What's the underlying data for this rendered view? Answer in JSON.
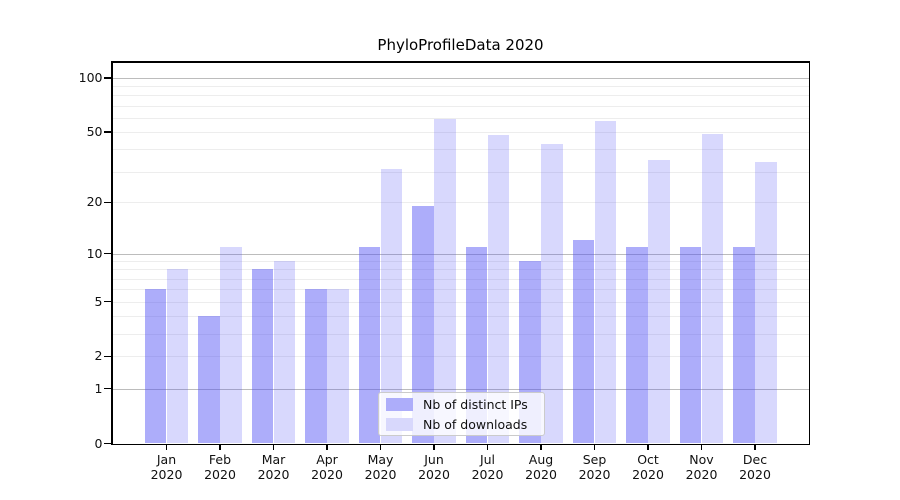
{
  "figure": {
    "title": "PhyloProfileData 2020"
  },
  "legend": {
    "items": [
      {
        "label": "Nb of distinct IPs",
        "color": "#adadfa"
      },
      {
        "label": "Nb of downloads",
        "color": "#d8d8fc"
      }
    ]
  },
  "chart_data": {
    "type": "bar",
    "title": "PhyloProfileData 2020",
    "yscale": "log1p",
    "grid": true,
    "legend_position": "lower center, inside plot",
    "categories": [
      "Jan 2020",
      "Feb 2020",
      "Mar 2020",
      "Apr 2020",
      "May 2020",
      "Jun 2020",
      "Jul 2020",
      "Aug 2020",
      "Sep 2020",
      "Oct 2020",
      "Nov 2020",
      "Dec 2020"
    ],
    "x_tick_month": [
      "Jan",
      "Feb",
      "Mar",
      "Apr",
      "May",
      "Jun",
      "Jul",
      "Aug",
      "Sep",
      "Oct",
      "Nov",
      "Dec"
    ],
    "x_tick_year": "2020",
    "series": [
      {
        "name": "Nb of distinct IPs",
        "color": "rgba(77,77,244,0.46)",
        "values": [
          6,
          4,
          8,
          6,
          11,
          19,
          11,
          9,
          12,
          11,
          11,
          11
        ]
      },
      {
        "name": "Nb of downloads",
        "color": "rgba(77,77,244,0.22)",
        "values": [
          8,
          11,
          9,
          6,
          31,
          59,
          48,
          43,
          58,
          35,
          49,
          34
        ]
      }
    ],
    "y_ticks": [
      0,
      1,
      2,
      5,
      10,
      20,
      50,
      100
    ],
    "ylim": [
      0,
      115
    ],
    "y_major_gridlines": [
      1,
      10,
      100
    ],
    "y_minor_gridlines": [
      2,
      3,
      4,
      5,
      6,
      7,
      8,
      9,
      20,
      30,
      40,
      50,
      60,
      70,
      80,
      90
    ],
    "colors": {
      "major_grid": "#bcbcbc",
      "minor_grid": "#ededed",
      "spine": "#000000",
      "text": "#111111"
    }
  }
}
